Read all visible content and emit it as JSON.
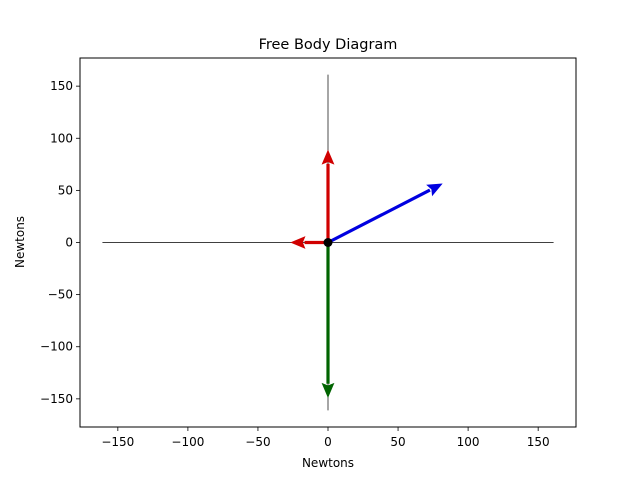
{
  "chart_data": {
    "type": "vector",
    "title": "Free Body Diagram",
    "xlabel": "Newtons",
    "ylabel": "Newtons",
    "xlim": [
      -177,
      177
    ],
    "ylim": [
      -177,
      177
    ],
    "xticks": [
      -150,
      -100,
      -50,
      0,
      50,
      100,
      150
    ],
    "yticks": [
      -150,
      -100,
      -50,
      0,
      50,
      100,
      150
    ],
    "xtick_labels": [
      "−150",
      "−100",
      "−50",
      "0",
      "50",
      "100",
      "150"
    ],
    "ytick_labels": [
      "−150",
      "−100",
      "−50",
      "0",
      "50",
      "100",
      "150"
    ],
    "reference_lines": {
      "horizontal": {
        "x": [
          -161,
          161
        ],
        "y": 0
      },
      "vertical": {
        "x": 0,
        "y": [
          -161,
          161
        ]
      }
    },
    "origin_point": {
      "x": 0,
      "y": 0
    },
    "vectors": [
      {
        "dx": 0,
        "dy": 88,
        "color": "#d00000"
      },
      {
        "dx": -26,
        "dy": 0,
        "color": "#d00000"
      },
      {
        "dx": 81,
        "dy": 56,
        "color": "#0000e0"
      },
      {
        "dx": 0,
        "dy": -148,
        "color": "#006400"
      }
    ],
    "grid": false
  }
}
